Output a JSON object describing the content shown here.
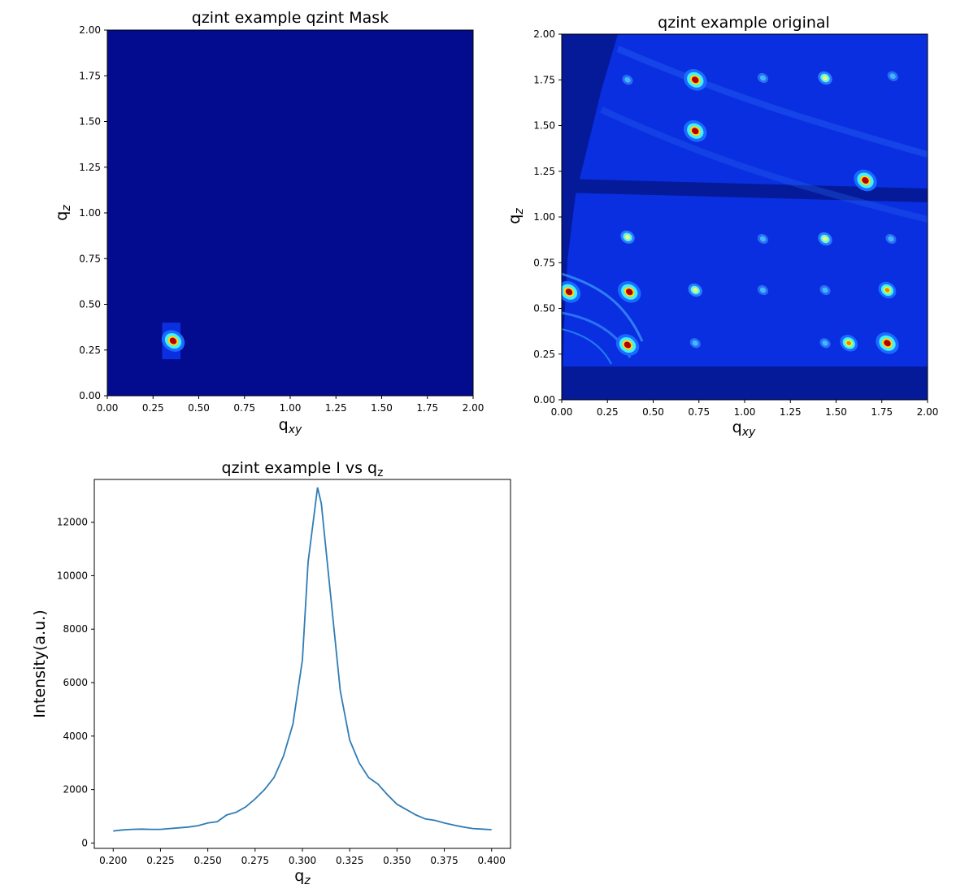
{
  "chart_data": [
    {
      "type": "heatmap",
      "title": "qzint example qzint Mask",
      "xlabel": "q",
      "xlabel_sub": "xy",
      "ylabel": "q",
      "ylabel_sub": "z",
      "xlim": [
        0,
        2
      ],
      "ylim": [
        0,
        2
      ],
      "xticks": [
        "0.00",
        "0.25",
        "0.50",
        "0.75",
        "1.00",
        "1.25",
        "1.50",
        "1.75",
        "2.00"
      ],
      "yticks": [
        "0.00",
        "0.25",
        "0.50",
        "0.75",
        "1.00",
        "1.25",
        "1.50",
        "1.75",
        "2.00"
      ],
      "colormap": "jet",
      "background_color": "#030c8f",
      "mask_window": {
        "qxy": [
          0.3,
          0.4
        ],
        "qz": [
          0.2,
          0.4
        ]
      },
      "peaks": [
        {
          "qxy": 0.36,
          "qz": 0.3,
          "level": "max"
        }
      ]
    },
    {
      "type": "heatmap",
      "title": "qzint example original",
      "xlabel": "q",
      "xlabel_sub": "xy",
      "ylabel": "q",
      "ylabel_sub": "z",
      "xlim": [
        0,
        2
      ],
      "ylim": [
        0,
        2
      ],
      "xticks": [
        "0.00",
        "0.25",
        "0.50",
        "0.75",
        "1.00",
        "1.25",
        "1.50",
        "1.75",
        "2.00"
      ],
      "yticks": [
        "0.00",
        "0.25",
        "0.50",
        "0.75",
        "1.00",
        "1.25",
        "1.50",
        "1.75",
        "2.00"
      ],
      "colormap": "jet",
      "background_color": "#0a2fe0",
      "peaks": [
        {
          "qxy": 0.73,
          "qz": 1.75,
          "level": "max"
        },
        {
          "qxy": 0.73,
          "qz": 1.47,
          "level": "max"
        },
        {
          "qxy": 1.44,
          "qz": 1.76,
          "level": "mid"
        },
        {
          "qxy": 0.36,
          "qz": 1.75,
          "level": "low"
        },
        {
          "qxy": 1.1,
          "qz": 1.76,
          "level": "low"
        },
        {
          "qxy": 1.81,
          "qz": 1.77,
          "level": "low"
        },
        {
          "qxy": 1.66,
          "qz": 1.2,
          "level": "max"
        },
        {
          "qxy": 0.36,
          "qz": 0.89,
          "level": "mid"
        },
        {
          "qxy": 1.44,
          "qz": 0.88,
          "level": "mid"
        },
        {
          "qxy": 1.1,
          "qz": 0.88,
          "level": "low"
        },
        {
          "qxy": 1.8,
          "qz": 0.88,
          "level": "low"
        },
        {
          "qxy": 0.37,
          "qz": 0.59,
          "level": "max"
        },
        {
          "qxy": 0.04,
          "qz": 0.59,
          "level": "max"
        },
        {
          "qxy": 0.73,
          "qz": 0.6,
          "level": "mid"
        },
        {
          "qxy": 1.78,
          "qz": 0.6,
          "level": "high"
        },
        {
          "qxy": 1.1,
          "qz": 0.6,
          "level": "low"
        },
        {
          "qxy": 1.44,
          "qz": 0.6,
          "level": "low"
        },
        {
          "qxy": 0.36,
          "qz": 0.3,
          "level": "max"
        },
        {
          "qxy": 1.57,
          "qz": 0.31,
          "level": "high"
        },
        {
          "qxy": 1.78,
          "qz": 0.31,
          "level": "max"
        },
        {
          "qxy": 0.73,
          "qz": 0.31,
          "level": "low"
        },
        {
          "qxy": 1.44,
          "qz": 0.31,
          "level": "low"
        }
      ]
    },
    {
      "type": "line",
      "title": "qzint example I vs q",
      "title_sub": "z",
      "xlabel": "q",
      "xlabel_sub": "z",
      "ylabel": "Intensity(a.u.)",
      "xlim": [
        0.19,
        0.41
      ],
      "ylim": [
        -200,
        13600
      ],
      "xticks": [
        "0.200",
        "0.225",
        "0.250",
        "0.275",
        "0.300",
        "0.325",
        "0.350",
        "0.375",
        "0.400"
      ],
      "yticks": [
        "0",
        "2000",
        "4000",
        "6000",
        "8000",
        "10000",
        "12000"
      ],
      "series": [
        {
          "color": "#2f7cb6",
          "x": [
            0.2,
            0.205,
            0.21,
            0.215,
            0.22,
            0.225,
            0.23,
            0.235,
            0.24,
            0.245,
            0.25,
            0.255,
            0.26,
            0.265,
            0.27,
            0.275,
            0.28,
            0.285,
            0.29,
            0.295,
            0.3,
            0.303,
            0.308,
            0.31,
            0.315,
            0.32,
            0.325,
            0.33,
            0.335,
            0.34,
            0.345,
            0.35,
            0.355,
            0.36,
            0.365,
            0.37,
            0.375,
            0.38,
            0.385,
            0.39,
            0.395,
            0.4
          ],
          "y": [
            450,
            490,
            510,
            520,
            510,
            510,
            540,
            570,
            600,
            650,
            750,
            800,
            1050,
            1150,
            1350,
            1650,
            2000,
            2450,
            3250,
            4450,
            6850,
            10500,
            13300,
            12700,
            9200,
            5700,
            3850,
            3000,
            2450,
            2200,
            1800,
            1450,
            1250,
            1050,
            900,
            850,
            750,
            670,
            600,
            540,
            520,
            500
          ]
        }
      ]
    }
  ]
}
